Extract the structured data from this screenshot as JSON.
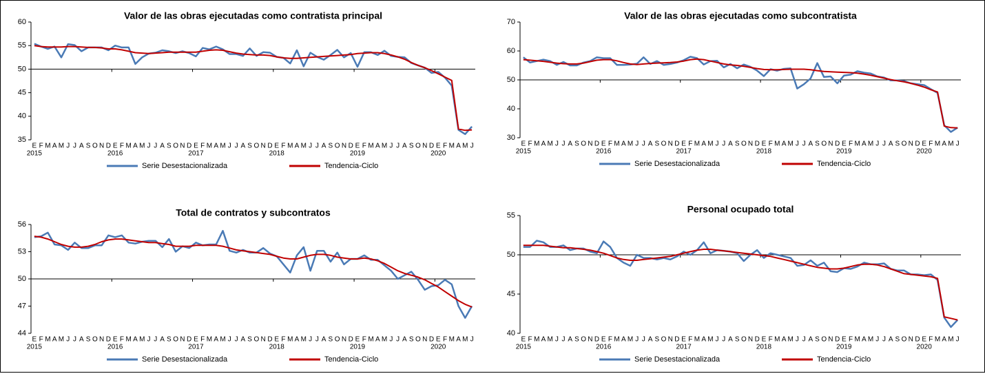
{
  "chart_data": [
    {
      "type": "line",
      "title": "Valor de las obras ejecutadas como contratista principal",
      "categories": [
        "E",
        "F",
        "M",
        "A",
        "M",
        "J",
        "J",
        "A",
        "S",
        "O",
        "N",
        "D",
        "E",
        "F",
        "M",
        "A",
        "M",
        "J",
        "J",
        "A",
        "S",
        "O",
        "N",
        "D",
        "E",
        "F",
        "M",
        "A",
        "M",
        "J",
        "J",
        "A",
        "S",
        "O",
        "N",
        "D",
        "E",
        "F",
        "M",
        "A",
        "M",
        "J",
        "J",
        "A",
        "S",
        "O",
        "N",
        "D",
        "E",
        "F",
        "M",
        "A",
        "M",
        "J",
        "J",
        "A",
        "S",
        "O",
        "N",
        "D",
        "E",
        "F",
        "M",
        "A",
        "M",
        "J"
      ],
      "years": [
        "2015",
        "2016",
        "2017",
        "2018",
        "2019",
        "2020"
      ],
      "series": [
        {
          "name": "Serie Desestacionalizada",
          "color": "#4a7ab5",
          "values": [
            55.4,
            54.8,
            54.3,
            54.8,
            52.5,
            55.3,
            55.1,
            53.8,
            54.6,
            54.6,
            54.6,
            54.0,
            55.0,
            54.6,
            54.6,
            51.1,
            52.5,
            53.3,
            53.5,
            54.0,
            53.8,
            53.4,
            53.8,
            53.4,
            52.7,
            54.5,
            54.2,
            54.8,
            54.2,
            53.2,
            53.2,
            52.8,
            54.4,
            52.8,
            53.6,
            53.5,
            52.6,
            52.4,
            51.2,
            54.0,
            50.6,
            53.5,
            52.6,
            52.0,
            53.0,
            54.1,
            52.5,
            53.4,
            50.5,
            53.6,
            53.6,
            53.0,
            53.9,
            52.8,
            52.6,
            52.5,
            51.3,
            50.8,
            50.3,
            49.2,
            49.4,
            48.2,
            46.5,
            37.1,
            36.2,
            37.8
          ]
        },
        {
          "name": "Tendencia-Ciclo",
          "color": "#c00000",
          "values": [
            55.0,
            54.8,
            54.7,
            54.7,
            54.7,
            54.8,
            54.8,
            54.7,
            54.6,
            54.6,
            54.5,
            54.3,
            54.3,
            54.1,
            53.8,
            53.5,
            53.4,
            53.3,
            53.4,
            53.5,
            53.6,
            53.6,
            53.6,
            53.6,
            53.6,
            53.8,
            54.0,
            54.1,
            54.0,
            53.7,
            53.4,
            53.2,
            53.1,
            53.0,
            53.0,
            52.9,
            52.6,
            52.4,
            52.3,
            52.3,
            52.4,
            52.5,
            52.6,
            52.7,
            52.8,
            52.9,
            53.0,
            53.1,
            53.3,
            53.4,
            53.5,
            53.5,
            53.3,
            53.0,
            52.6,
            52.1,
            51.4,
            50.8,
            50.3,
            49.7,
            49.0,
            48.3,
            47.6,
            37.3,
            37.0,
            37.1
          ]
        }
      ],
      "ylim": [
        35,
        60
      ],
      "yticks": [
        35,
        40,
        45,
        50,
        55,
        60
      ],
      "x_axis_at": 50
    },
    {
      "type": "line",
      "title": "Valor de las obras ejecutadas como subcontratista",
      "categories": [
        "E",
        "F",
        "M",
        "A",
        "M",
        "J",
        "J",
        "A",
        "S",
        "O",
        "N",
        "D",
        "E",
        "F",
        "M",
        "A",
        "M",
        "J",
        "J",
        "A",
        "S",
        "O",
        "N",
        "D",
        "E",
        "F",
        "M",
        "A",
        "M",
        "J",
        "J",
        "A",
        "S",
        "O",
        "N",
        "D",
        "E",
        "F",
        "M",
        "A",
        "M",
        "J",
        "J",
        "A",
        "S",
        "O",
        "N",
        "D",
        "E",
        "F",
        "M",
        "A",
        "M",
        "J",
        "J",
        "A",
        "S",
        "O",
        "N",
        "D",
        "E",
        "F",
        "M",
        "A",
        "M",
        "J"
      ],
      "years": [
        "2015",
        "2016",
        "2017",
        "2018",
        "2019",
        "2020"
      ],
      "series": [
        {
          "name": "Serie Desestacionalizada",
          "color": "#4a7ab5",
          "values": [
            57.8,
            56.0,
            56.5,
            57.0,
            56.5,
            55.2,
            56.2,
            55.0,
            55.0,
            56.0,
            56.5,
            57.8,
            57.5,
            57.5,
            55.2,
            55.2,
            55.3,
            55.6,
            57.8,
            55.5,
            56.5,
            55.2,
            55.5,
            56.0,
            56.8,
            58.0,
            57.5,
            55.3,
            56.5,
            56.6,
            54.3,
            55.5,
            54.0,
            55.3,
            54.5,
            53.2,
            51.3,
            53.7,
            53.2,
            53.8,
            54.0,
            47.0,
            48.5,
            50.5,
            55.8,
            51.0,
            51.2,
            48.8,
            51.5,
            51.8,
            53.0,
            52.5,
            52.2,
            51.2,
            50.8,
            49.8,
            49.8,
            49.6,
            48.8,
            48.5,
            48.2,
            46.8,
            45.5,
            34.3,
            32.0,
            33.5
          ]
        },
        {
          "name": "Tendencia-Ciclo",
          "color": "#c00000",
          "values": [
            57.0,
            56.8,
            56.6,
            56.4,
            56.1,
            55.8,
            55.6,
            55.5,
            55.5,
            55.8,
            56.3,
            56.8,
            57.0,
            57.0,
            56.6,
            56.0,
            55.5,
            55.3,
            55.5,
            55.7,
            55.8,
            55.9,
            56.0,
            56.2,
            56.5,
            57.0,
            57.2,
            57.0,
            56.5,
            56.0,
            55.5,
            55.2,
            55.0,
            54.7,
            54.3,
            53.9,
            53.6,
            53.5,
            53.5,
            53.6,
            53.7,
            53.7,
            53.7,
            53.5,
            53.2,
            52.9,
            52.8,
            52.7,
            52.6,
            52.5,
            52.3,
            52.0,
            51.6,
            51.1,
            50.6,
            50.1,
            49.7,
            49.3,
            48.8,
            48.2,
            47.5,
            46.6,
            45.8,
            34.0,
            33.5,
            33.4
          ]
        }
      ],
      "ylim": [
        30,
        70
      ],
      "yticks": [
        30,
        40,
        50,
        60,
        70
      ],
      "x_axis_at": 50
    },
    {
      "type": "line",
      "title": "Total de contratos y subcontratos",
      "categories": [
        "E",
        "F",
        "M",
        "A",
        "M",
        "J",
        "J",
        "A",
        "S",
        "O",
        "N",
        "D",
        "E",
        "F",
        "M",
        "A",
        "M",
        "J",
        "J",
        "A",
        "S",
        "O",
        "N",
        "D",
        "E",
        "F",
        "M",
        "A",
        "M",
        "J",
        "J",
        "A",
        "S",
        "O",
        "N",
        "D",
        "E",
        "F",
        "M",
        "A",
        "M",
        "J",
        "J",
        "A",
        "S",
        "O",
        "N",
        "D",
        "E",
        "F",
        "M",
        "A",
        "M",
        "J",
        "J",
        "A",
        "S",
        "O",
        "N",
        "D",
        "E",
        "F",
        "M",
        "A",
        "M",
        "J"
      ],
      "years": [
        "2015",
        "2016",
        "2017",
        "2018",
        "2019",
        "2020"
      ],
      "series": [
        {
          "name": "Serie Desestacionalizada",
          "color": "#4a7ab5",
          "values": [
            54.6,
            54.7,
            55.1,
            53.8,
            53.7,
            53.2,
            54.0,
            53.4,
            53.4,
            53.7,
            53.7,
            54.8,
            54.6,
            54.8,
            54.0,
            53.9,
            54.1,
            54.2,
            54.2,
            53.5,
            54.4,
            53.0,
            53.6,
            53.4,
            54.0,
            53.7,
            53.8,
            53.8,
            55.3,
            53.1,
            52.9,
            53.2,
            52.9,
            52.9,
            53.4,
            52.8,
            52.5,
            51.6,
            50.7,
            52.6,
            53.5,
            50.9,
            53.1,
            53.1,
            51.9,
            52.9,
            51.6,
            52.2,
            52.2,
            52.6,
            52.1,
            52.1,
            51.5,
            50.9,
            50.0,
            50.4,
            50.8,
            49.9,
            48.8,
            49.2,
            49.3,
            49.9,
            49.4,
            47.0,
            45.7,
            47.0
          ]
        },
        {
          "name": "Tendencia-Ciclo",
          "color": "#c00000",
          "values": [
            54.7,
            54.6,
            54.4,
            54.1,
            53.8,
            53.6,
            53.5,
            53.5,
            53.6,
            53.8,
            54.1,
            54.3,
            54.4,
            54.4,
            54.3,
            54.2,
            54.1,
            54.0,
            54.0,
            53.9,
            53.8,
            53.6,
            53.6,
            53.6,
            53.7,
            53.7,
            53.7,
            53.7,
            53.6,
            53.4,
            53.2,
            53.1,
            53.0,
            52.9,
            52.8,
            52.7,
            52.5,
            52.3,
            52.2,
            52.2,
            52.4,
            52.6,
            52.7,
            52.7,
            52.6,
            52.4,
            52.3,
            52.2,
            52.2,
            52.3,
            52.2,
            52.0,
            51.7,
            51.3,
            50.9,
            50.6,
            50.4,
            50.2,
            49.9,
            49.5,
            49.1,
            48.6,
            48.1,
            47.6,
            47.2,
            46.9
          ]
        }
      ],
      "ylim": [
        44,
        56
      ],
      "yticks": [
        44,
        47,
        50,
        53,
        56
      ],
      "x_axis_at": 50
    },
    {
      "type": "line",
      "title": "Personal ocupado total",
      "categories": [
        "E",
        "F",
        "M",
        "A",
        "M",
        "J",
        "J",
        "A",
        "S",
        "O",
        "N",
        "D",
        "E",
        "F",
        "M",
        "A",
        "M",
        "J",
        "J",
        "A",
        "S",
        "O",
        "N",
        "D",
        "E",
        "F",
        "M",
        "A",
        "M",
        "J",
        "J",
        "A",
        "S",
        "O",
        "N",
        "D",
        "E",
        "F",
        "M",
        "A",
        "M",
        "J",
        "J",
        "A",
        "S",
        "O",
        "N",
        "D",
        "E",
        "F",
        "M",
        "A",
        "M",
        "J",
        "J",
        "A",
        "S",
        "O",
        "N",
        "D",
        "E",
        "F",
        "M",
        "A",
        "M",
        "J"
      ],
      "years": [
        "2015",
        "2016",
        "2017",
        "2018",
        "2019",
        "2020"
      ],
      "series": [
        {
          "name": "Serie Desestacionalizada",
          "color": "#4a7ab5",
          "values": [
            51.0,
            51.0,
            51.8,
            51.6,
            51.0,
            51.0,
            51.2,
            50.6,
            50.8,
            50.8,
            50.4,
            50.2,
            51.7,
            51.0,
            49.6,
            49.0,
            48.6,
            50.0,
            49.6,
            49.6,
            49.4,
            49.6,
            49.4,
            49.8,
            50.4,
            50.0,
            50.6,
            51.6,
            50.2,
            50.6,
            50.5,
            50.4,
            50.2,
            49.2,
            50.0,
            50.6,
            49.6,
            50.2,
            50.0,
            49.8,
            49.6,
            48.6,
            48.7,
            49.3,
            48.6,
            49.0,
            47.9,
            47.8,
            48.3,
            48.2,
            48.5,
            49.0,
            48.8,
            48.8,
            48.9,
            48.2,
            48.0,
            48.0,
            47.5,
            47.5,
            47.4,
            47.5,
            46.8,
            42.0,
            40.8,
            41.7
          ]
        },
        {
          "name": "Tendencia-Ciclo",
          "color": "#c00000",
          "values": [
            51.2,
            51.2,
            51.2,
            51.2,
            51.1,
            51.0,
            50.9,
            50.9,
            50.8,
            50.7,
            50.6,
            50.4,
            50.2,
            49.9,
            49.6,
            49.4,
            49.3,
            49.3,
            49.4,
            49.5,
            49.6,
            49.7,
            49.8,
            50.0,
            50.2,
            50.4,
            50.6,
            50.7,
            50.7,
            50.6,
            50.5,
            50.4,
            50.3,
            50.2,
            50.1,
            50.0,
            49.9,
            49.8,
            49.6,
            49.4,
            49.2,
            49.0,
            48.8,
            48.6,
            48.4,
            48.3,
            48.2,
            48.2,
            48.3,
            48.5,
            48.7,
            48.8,
            48.8,
            48.7,
            48.5,
            48.2,
            47.9,
            47.6,
            47.5,
            47.4,
            47.3,
            47.2,
            47.0,
            42.1,
            41.9,
            41.7
          ]
        }
      ],
      "ylim": [
        40,
        55
      ],
      "yticks": [
        40,
        45,
        50,
        55
      ],
      "x_axis_at": 50
    }
  ]
}
